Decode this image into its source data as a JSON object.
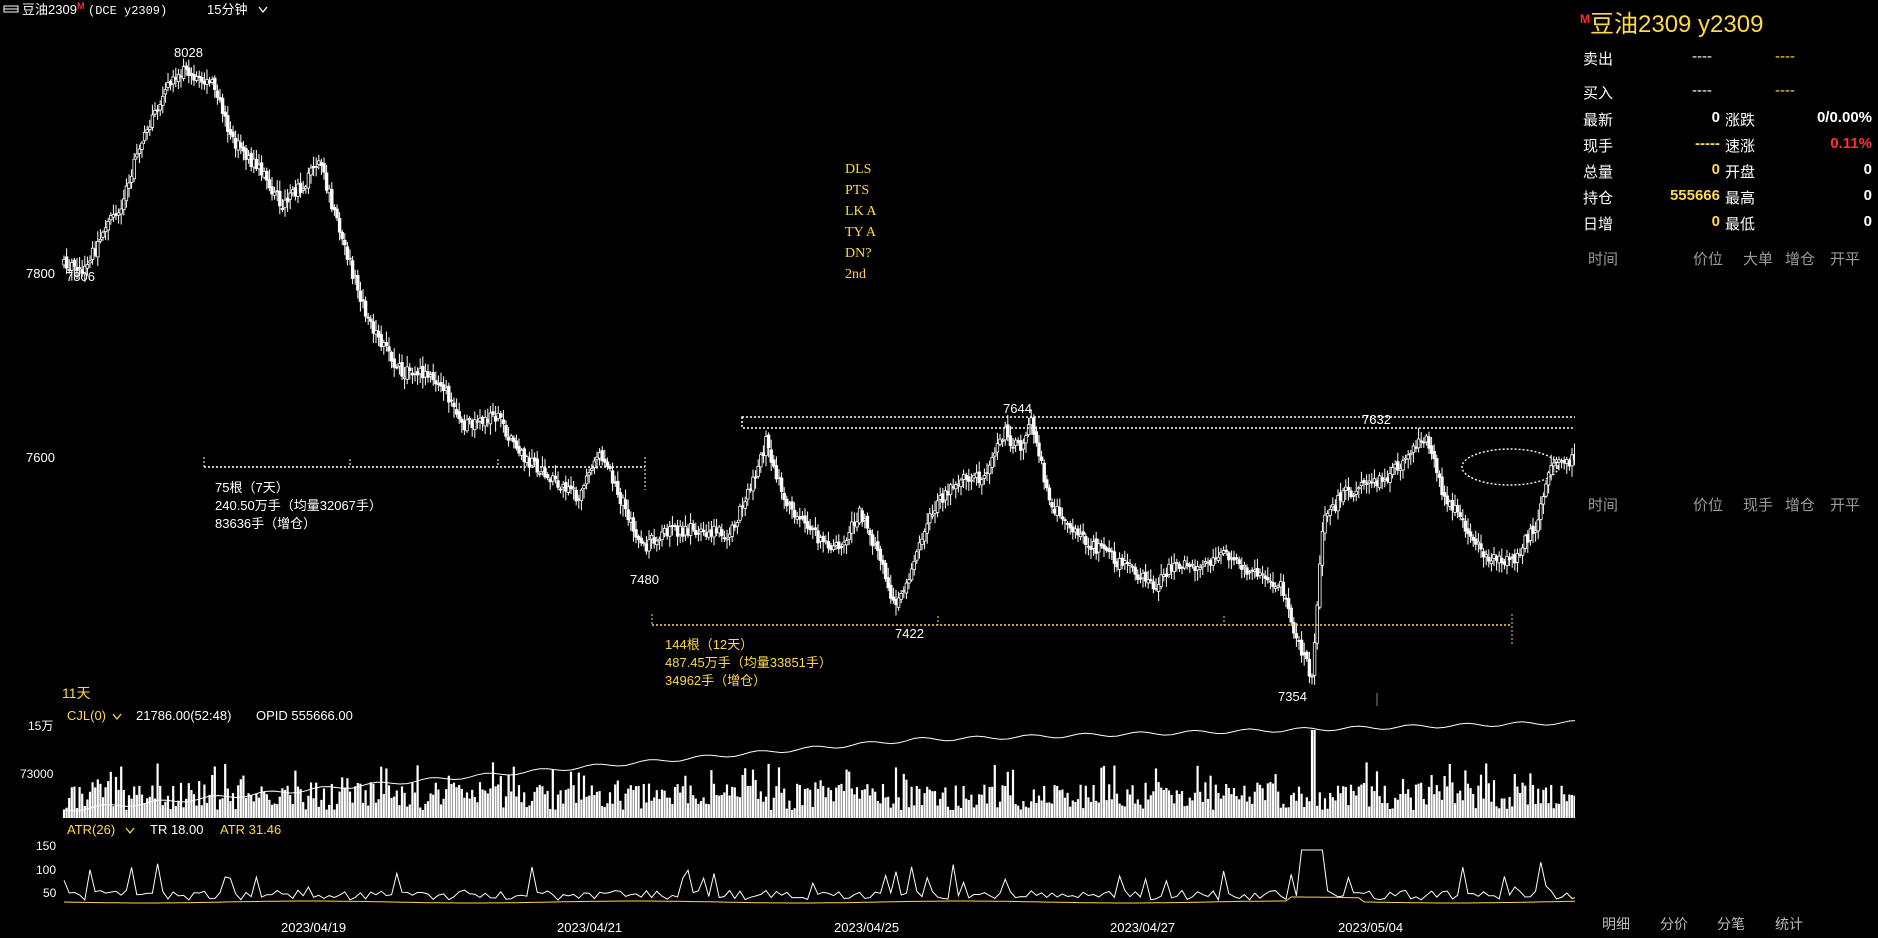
{
  "header": {
    "menu_icon": "menu-icon",
    "symbol": "豆油2309",
    "superscript": "M",
    "exchange": "(DCE y2309)",
    "period": "15分钟"
  },
  "chart_data": {
    "type": "candlestick",
    "y_ticks": [
      "7800",
      "7600"
    ],
    "x_labels": [
      "2023/04/19",
      "2023/04/21",
      "2023/04/25",
      "2023/04/27",
      "2023/05/04"
    ],
    "price_labels": [
      {
        "text": "8028",
        "value": 8028
      },
      {
        "text": "7806",
        "value": 7806
      },
      {
        "text": "7480",
        "value": 7480
      },
      {
        "text": "7644",
        "value": 7644
      },
      {
        "text": "7422",
        "value": 7422
      },
      {
        "text": "7632",
        "value": 7632
      },
      {
        "text": "7354",
        "value": 7354
      }
    ],
    "anchors": [
      [
        0,
        7815
      ],
      [
        8,
        7810
      ],
      [
        12,
        7830
      ],
      [
        22,
        7880
      ],
      [
        30,
        7950
      ],
      [
        40,
        8010
      ],
      [
        46,
        8025
      ],
      [
        58,
        8010
      ],
      [
        64,
        7950
      ],
      [
        74,
        7920
      ],
      [
        84,
        7880
      ],
      [
        92,
        7900
      ],
      [
        98,
        7930
      ],
      [
        106,
        7850
      ],
      [
        116,
        7760
      ],
      [
        128,
        7700
      ],
      [
        144,
        7690
      ],
      [
        154,
        7640
      ],
      [
        166,
        7650
      ],
      [
        178,
        7600
      ],
      [
        188,
        7580
      ],
      [
        198,
        7560
      ],
      [
        206,
        7610
      ],
      [
        214,
        7560
      ],
      [
        222,
        7505
      ],
      [
        232,
        7525
      ],
      [
        246,
        7525
      ],
      [
        256,
        7520
      ],
      [
        264,
        7570
      ],
      [
        270,
        7620
      ],
      [
        278,
        7555
      ],
      [
        288,
        7520
      ],
      [
        298,
        7505
      ],
      [
        306,
        7545
      ],
      [
        314,
        7490
      ],
      [
        320,
        7440
      ],
      [
        326,
        7480
      ],
      [
        334,
        7545
      ],
      [
        342,
        7575
      ],
      [
        354,
        7585
      ],
      [
        362,
        7630
      ],
      [
        368,
        7610
      ],
      [
        372,
        7640
      ],
      [
        380,
        7550
      ],
      [
        390,
        7520
      ],
      [
        400,
        7500
      ],
      [
        412,
        7480
      ],
      [
        420,
        7465
      ],
      [
        426,
        7485
      ],
      [
        438,
        7488
      ],
      [
        446,
        7500
      ],
      [
        454,
        7480
      ],
      [
        462,
        7472
      ],
      [
        468,
        7465
      ],
      [
        474,
        7405
      ],
      [
        480,
        7365
      ],
      [
        484,
        7530
      ],
      [
        492,
        7565
      ],
      [
        500,
        7572
      ],
      [
        510,
        7585
      ],
      [
        518,
        7610
      ],
      [
        524,
        7625
      ],
      [
        530,
        7570
      ],
      [
        538,
        7530
      ],
      [
        546,
        7500
      ],
      [
        552,
        7490
      ],
      [
        558,
        7495
      ],
      [
        566,
        7530
      ],
      [
        572,
        7595
      ],
      [
        580,
        7600
      ],
      [
        586,
        7598
      ]
    ],
    "overlay_indicators": [
      "DLS",
      "PTS",
      "LK A",
      "TY A",
      "DN?",
      "2nd"
    ],
    "ranges": [
      {
        "color": "#ffffff",
        "lines": [
          "75根（7天）",
          "240.50万手（均量32067手）",
          "83636手（增仓）"
        ]
      },
      {
        "color": "#ffd84a",
        "lines": [
          "144根（12天）",
          "487.45万手（均量33851手）",
          "34962手（增仓）"
        ]
      }
    ],
    "days_label": "11天",
    "volume": {
      "label": "CJL(0)",
      "value": "21786.00(52:48)",
      "opid": "OPID 555666.00",
      "scale_top": "15万",
      "tick": "73000"
    },
    "atr": {
      "label": "ATR(26)",
      "tr": "TR 18.00",
      "atr": "ATR 31.46",
      "ticks": [
        "150",
        "100",
        "50"
      ]
    },
    "colors": {
      "up": "#ffffff",
      "down": "#ffffff",
      "accent": "#ffd84a",
      "volume_line": "#ffffff"
    }
  },
  "panel": {
    "title": "豆油2309  y2309",
    "title_sup": "M",
    "rows": [
      {
        "l1": "卖出",
        "v1": "----",
        "v2": "----"
      },
      {
        "l1": "买入",
        "v1": "----",
        "v2": "----"
      }
    ],
    "stats": [
      {
        "l1": "最新",
        "v1": "0",
        "l2": "涨跌",
        "v2": "0/0.00%"
      },
      {
        "l1": "现手",
        "v1": "-----",
        "l2": "速涨",
        "v2": "0.11%"
      },
      {
        "l1": "总量",
        "v1": "0",
        "l2": "开盘",
        "v2": "0"
      },
      {
        "l1": "持仓",
        "v1": "555666",
        "l2": "最高",
        "v2": "0"
      },
      {
        "l1": "日增",
        "v1": "0",
        "l2": "最低",
        "v2": "0"
      }
    ],
    "head1": [
      "时间",
      "价位",
      "大单",
      "增仓",
      "开平"
    ],
    "head2": [
      "时间",
      "价位",
      "现手",
      "增仓",
      "开平"
    ],
    "tabs": [
      "明细",
      "分价",
      "分笔",
      "统计"
    ],
    "colors": {
      "label": "#ffffff",
      "yellow": "#ffd84a",
      "red": "#ff3030",
      "header": "#9a9a9a"
    }
  }
}
